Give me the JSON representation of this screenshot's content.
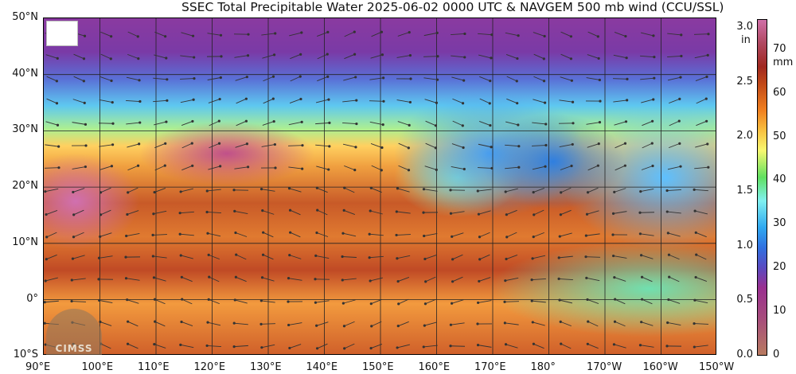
{
  "title": "SSEC Total Precipitable Water  2025-06-02 0000 UTC & NAVGEM 500 mb wind (CCU/SSL)",
  "lat_labels": [
    "50°N",
    "40°N",
    "30°N",
    "20°N",
    "10°N",
    "0°",
    "10°S"
  ],
  "lon_labels": [
    "90°E",
    "100°E",
    "110°E",
    "120°E",
    "130°E",
    "140°E",
    "150°E",
    "160°E",
    "170°E",
    "180°",
    "170°W",
    "160°W",
    "150°W"
  ],
  "colorbar": {
    "in_unit": "in",
    "mm_unit": "mm",
    "in_ticks": [
      "3.0",
      "2.5",
      "2.0",
      "1.5",
      "1.0",
      "0.5",
      "0.0"
    ],
    "mm_ticks": [
      "70",
      "60",
      "50",
      "40",
      "30",
      "20",
      "10",
      "0"
    ]
  },
  "logos": {
    "watermark": "CIMSS"
  }
}
